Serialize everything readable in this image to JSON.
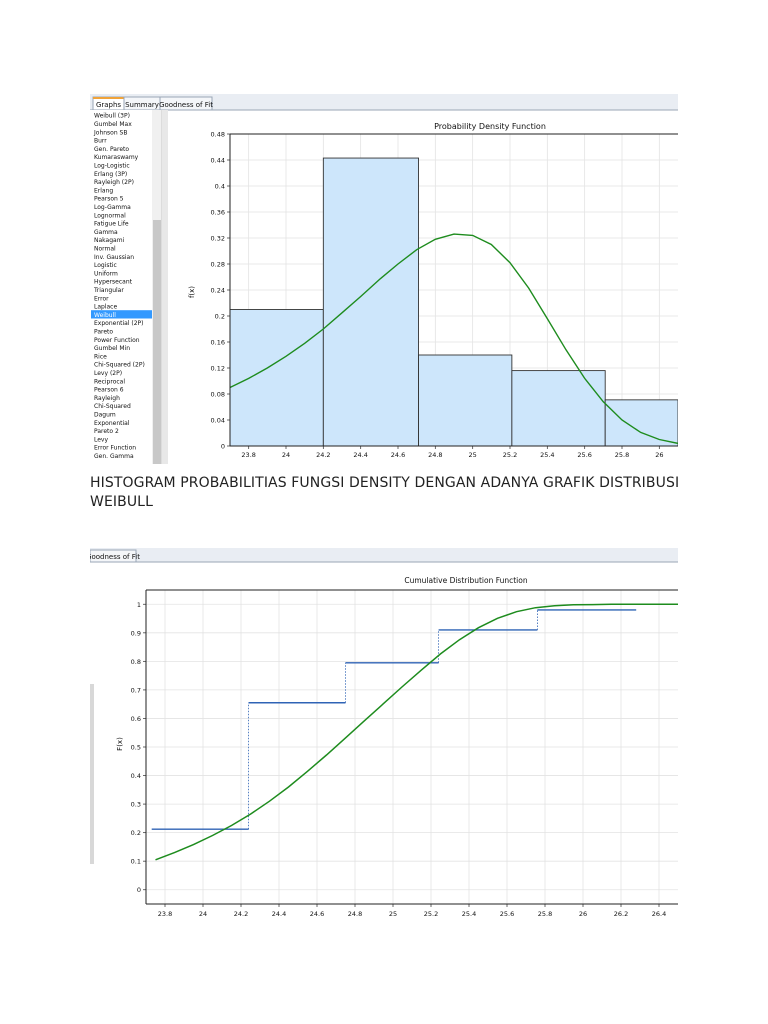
{
  "tabs": [
    "Graphs",
    "Summary",
    "Goodness of Fit"
  ],
  "tabs2": [
    "Goodness of Fit"
  ],
  "distributions": [
    "Weibull (3P)",
    "Gumbel Max",
    "Johnson SB",
    "Burr",
    "Gen. Pareto",
    "Kumaraswamy",
    "Log-Logistic",
    "Erlang (3P)",
    "Rayleigh (2P)",
    "Erlang",
    "Pearson 5",
    "Log-Gamma",
    "Lognormal",
    "Fatigue Life",
    "Gamma",
    "Nakagami",
    "Normal",
    "Inv. Gaussian",
    "Logistic",
    "Uniform",
    "Hypersecant",
    "Triangular",
    "Error",
    "Laplace",
    "Weibull",
    "Exponential (2P)",
    "Pareto",
    "Power Function",
    "Gumbel Min",
    "Rice",
    "Chi-Squared (2P)",
    "Levy (2P)",
    "Reciprocal",
    "Pearson 6",
    "Rayleigh",
    "Chi-Squared",
    "Dagum",
    "Exponential",
    "Pareto 2",
    "Levy",
    "Error Function",
    "Gen. Gamma"
  ],
  "selected_index": 24,
  "caption": "HISTOGRAM PROBABILITIAS FUNGSI DENSITY DENGAN ADANYA GRAFIK DISTRIBUSI WEIBULL",
  "colors": {
    "fit_curve": "#1e8c1e",
    "bar_fill": "#cde6fb",
    "bar_stroke": "#333333",
    "step_line": "#2f63b5",
    "selection": "#3399ff"
  },
  "chart_data": [
    {
      "type": "bar",
      "title": "Probability Density Function",
      "ylabel": "f(x)",
      "xlim": [
        23.7,
        26.1
      ],
      "ylim": [
        0,
        0.48
      ],
      "x_ticks": [
        "23.8",
        "24",
        "24.2",
        "24.4",
        "24.6",
        "24.8",
        "25",
        "25.2",
        "25.4",
        "25.6",
        "25.8",
        "26"
      ],
      "y_ticks": [
        "0",
        "0.04",
        "0.08",
        "0.12",
        "0.16",
        "0.2",
        "0.24",
        "0.28",
        "0.32",
        "0.36",
        "0.4",
        "0.44",
        "0.48"
      ],
      "bins": [
        {
          "x0": 23.7,
          "x1": 24.2,
          "value": 0.21
        },
        {
          "x0": 24.2,
          "x1": 24.71,
          "value": 0.443
        },
        {
          "x0": 24.71,
          "x1": 25.21,
          "value": 0.14
        },
        {
          "x0": 25.21,
          "x1": 25.71,
          "value": 0.116
        },
        {
          "x0": 25.71,
          "x1": 26.1,
          "value": 0.071
        }
      ],
      "curve": {
        "x": [
          23.7,
          23.8,
          23.9,
          24.0,
          24.1,
          24.2,
          24.3,
          24.4,
          24.5,
          24.6,
          24.7,
          24.8,
          24.9,
          25.0,
          25.1,
          25.2,
          25.3,
          25.4,
          25.5,
          25.6,
          25.7,
          25.8,
          25.9,
          26.0,
          26.1
        ],
        "y": [
          0.09,
          0.104,
          0.12,
          0.138,
          0.158,
          0.18,
          0.205,
          0.23,
          0.256,
          0.28,
          0.302,
          0.318,
          0.326,
          0.324,
          0.31,
          0.282,
          0.243,
          0.196,
          0.148,
          0.104,
          0.068,
          0.04,
          0.021,
          0.01,
          0.004
        ]
      }
    },
    {
      "type": "line",
      "title": "Cumulative Distribution Function",
      "ylabel": "F(x)",
      "xlim": [
        23.7,
        26.5
      ],
      "ylim": [
        -0.05,
        1.05
      ],
      "x_ticks": [
        "23.8",
        "24",
        "24.2",
        "24.4",
        "24.6",
        "24.8",
        "25",
        "25.2",
        "25.4",
        "25.6",
        "25.8",
        "26",
        "26.2",
        "26.4"
      ],
      "y_ticks": [
        "0",
        "0.1",
        "0.2",
        "0.3",
        "0.4",
        "0.5",
        "0.6",
        "0.7",
        "0.8",
        "0.9",
        "1"
      ],
      "steps": [
        {
          "x0": 23.73,
          "x1": 24.24,
          "y": 0.212
        },
        {
          "x0": 24.24,
          "x1": 24.75,
          "y": 0.655
        },
        {
          "x0": 24.75,
          "x1": 25.24,
          "y": 0.795
        },
        {
          "x0": 25.24,
          "x1": 25.76,
          "y": 0.91
        },
        {
          "x0": 25.76,
          "x1": 26.28,
          "y": 0.98
        }
      ],
      "curve": {
        "x": [
          23.75,
          23.85,
          23.95,
          24.05,
          24.15,
          24.25,
          24.35,
          24.45,
          24.55,
          24.65,
          24.75,
          24.85,
          24.95,
          25.05,
          25.15,
          25.25,
          25.35,
          25.45,
          25.55,
          25.65,
          25.75,
          25.85,
          25.95,
          26.05,
          26.15,
          26.3,
          26.5
        ],
        "y": [
          0.105,
          0.13,
          0.158,
          0.19,
          0.225,
          0.265,
          0.31,
          0.36,
          0.415,
          0.472,
          0.532,
          0.592,
          0.652,
          0.712,
          0.77,
          0.826,
          0.876,
          0.918,
          0.951,
          0.974,
          0.988,
          0.995,
          0.998,
          0.999,
          1.0,
          1.0,
          1.0
        ]
      }
    }
  ]
}
